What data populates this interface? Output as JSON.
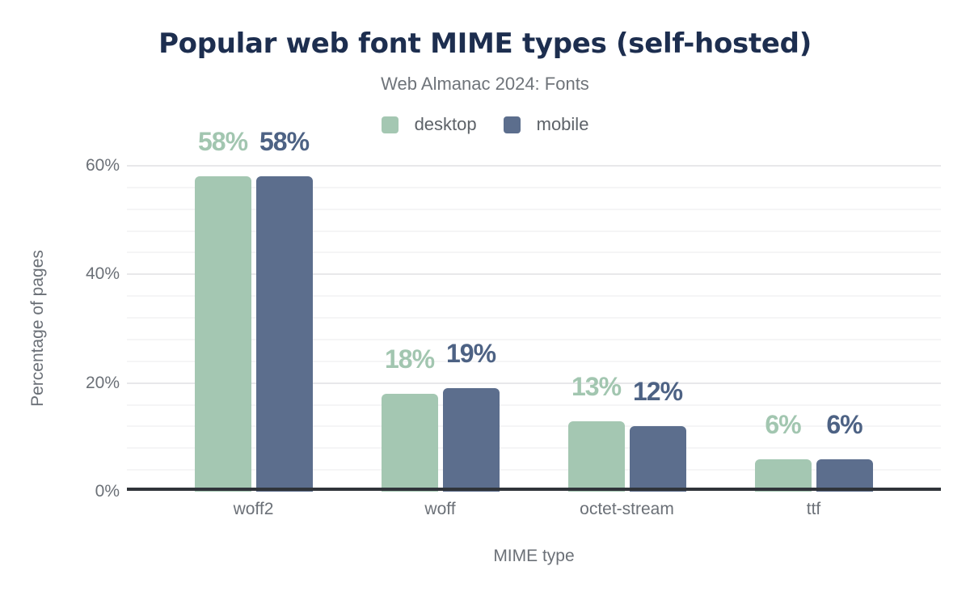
{
  "title": "Popular web font MIME types (self-hosted)",
  "subtitle": "Web Almanac 2024: Fonts",
  "colors": {
    "title": "#1d2e4f",
    "subtitle": "#6f747a",
    "axis_text": "#6b7077",
    "legend_text": "#5d6268",
    "grid_minor": "#f5f5f6",
    "grid_major": "#e8e8ea",
    "axis_line": "#30343a",
    "desktop": "#a4c7b2",
    "mobile": "#5c6e8d",
    "desktop_value_label": "#a2c6b0",
    "mobile_value_label": "#4d6284"
  },
  "chart_data": {
    "type": "bar",
    "categories": [
      "woff2",
      "woff",
      "octet-stream",
      "ttf"
    ],
    "series": [
      {
        "name": "desktop",
        "color": "#a4c7b2",
        "label_color": "#a2c6b0",
        "values": [
          58,
          18,
          13,
          6
        ]
      },
      {
        "name": "mobile",
        "color": "#5c6e8d",
        "label_color": "#4d6284",
        "values": [
          58,
          19,
          12,
          6
        ]
      }
    ],
    "value_label_suffix": "%",
    "title": "Popular web font MIME types (self-hosted)",
    "subtitle": "Web Almanac 2024: Fonts",
    "xlabel": "MIME type",
    "ylabel": "Percentage of pages",
    "ylim": [
      0,
      60
    ],
    "y_ticks": [
      0,
      20,
      40,
      60
    ],
    "y_tick_labels": [
      "0%",
      "20%",
      "40%",
      "60%"
    ],
    "grid": {
      "minor_every": 4,
      "major_every": 20,
      "minor_on": true
    },
    "legend_position": "top-center"
  }
}
